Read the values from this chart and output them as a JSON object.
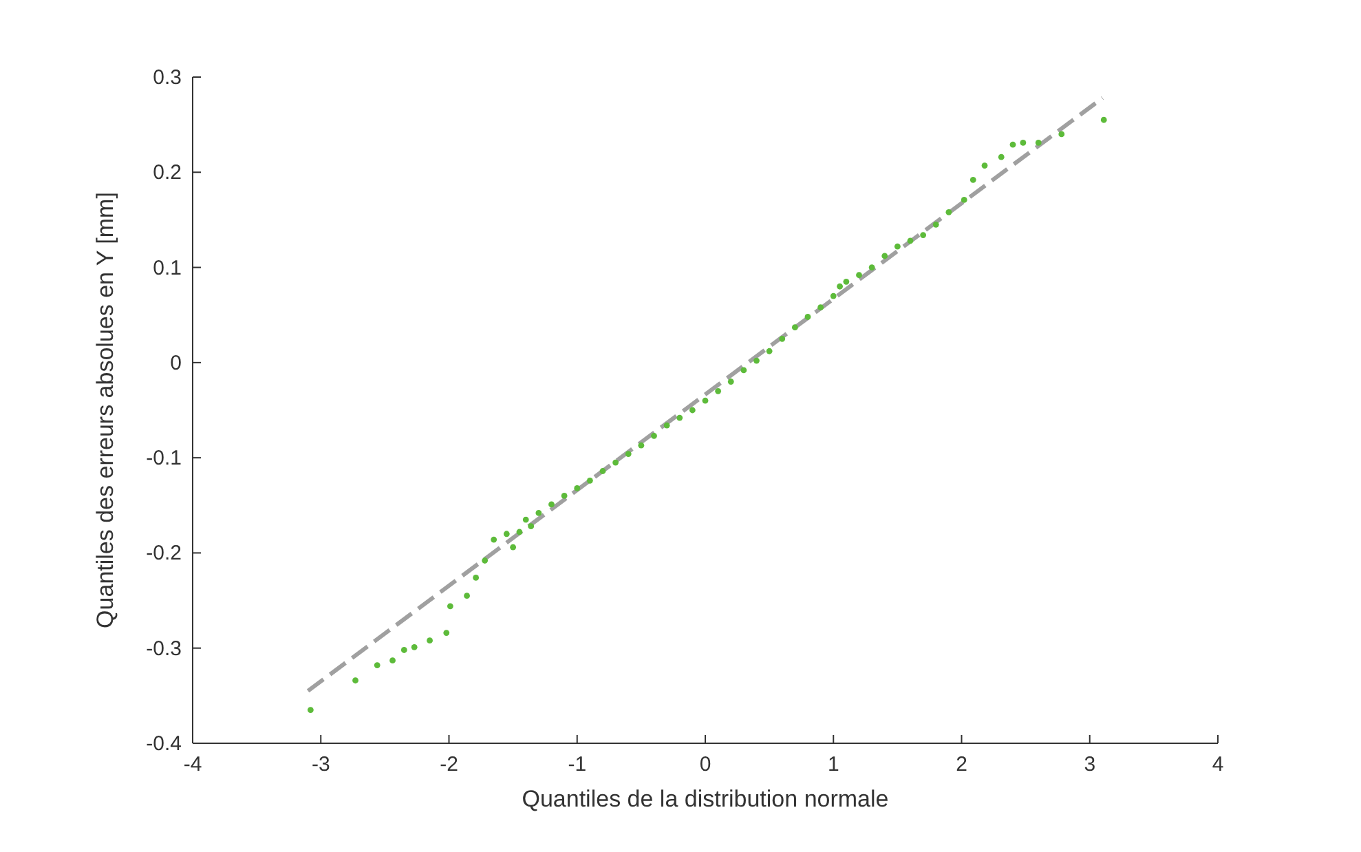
{
  "chart_data": {
    "type": "scatter",
    "xlabel": "Quantiles de la distribution normale",
    "ylabel": "Quantiles des erreurs absolues en Y [mm]",
    "xlim": [
      -4,
      4
    ],
    "xticks": [
      -4,
      -3,
      -2,
      -1,
      0,
      1,
      2,
      3,
      4
    ],
    "ylim": [
      -0.4,
      0.3
    ],
    "yticks": [
      -0.4,
      -0.3,
      -0.2,
      -0.1,
      0,
      0.1,
      0.2,
      0.3
    ],
    "grid": false,
    "series": [
      {
        "color": "#5dbb3a",
        "marker": "circle",
        "x": [
          -3.08,
          -2.73,
          -2.56,
          -2.44,
          -2.35,
          -2.27,
          -2.15,
          -2.02,
          -1.99,
          -1.86,
          -1.79,
          -1.72,
          -1.65,
          -1.55,
          -1.5,
          -1.45,
          -1.4,
          -1.36,
          -1.3,
          -1.2,
          -1.1,
          -1.0,
          -0.9,
          -0.8,
          -0.7,
          -0.6,
          -0.5,
          -0.4,
          -0.3,
          -0.2,
          -0.1,
          0,
          0.1,
          0.2,
          0.3,
          0.4,
          0.5,
          0.6,
          0.7,
          0.8,
          0.9,
          1.0,
          1.05,
          1.1,
          1.2,
          1.3,
          1.4,
          1.5,
          1.6,
          1.7,
          1.8,
          1.9,
          2.02,
          2.09,
          2.18,
          2.31,
          2.4,
          2.48,
          2.6,
          2.78,
          3.11
        ],
        "values": [
          -0.365,
          -0.334,
          -0.318,
          -0.313,
          -0.302,
          -0.299,
          -0.292,
          -0.284,
          -0.256,
          -0.245,
          -0.226,
          -0.208,
          -0.186,
          -0.18,
          -0.194,
          -0.178,
          -0.165,
          -0.172,
          -0.158,
          -0.149,
          -0.14,
          -0.132,
          -0.124,
          -0.114,
          -0.105,
          -0.096,
          -0.087,
          -0.077,
          -0.066,
          -0.058,
          -0.05,
          -0.04,
          -0.03,
          -0.02,
          -0.008,
          0.002,
          0.012,
          0.025,
          0.037,
          0.048,
          0.058,
          0.07,
          0.08,
          0.085,
          0.092,
          0.1,
          0.112,
          0.122,
          0.128,
          0.134,
          0.145,
          0.158,
          0.171,
          0.192,
          0.207,
          0.216,
          0.229,
          0.231,
          0.231,
          0.24,
          0.255
        ]
      },
      {
        "type": "line",
        "color": "#a0a0a0",
        "line_style": "dashed",
        "x": [
          -3.1,
          3.1
        ],
        "values": [
          -0.345,
          0.278
        ]
      }
    ]
  }
}
